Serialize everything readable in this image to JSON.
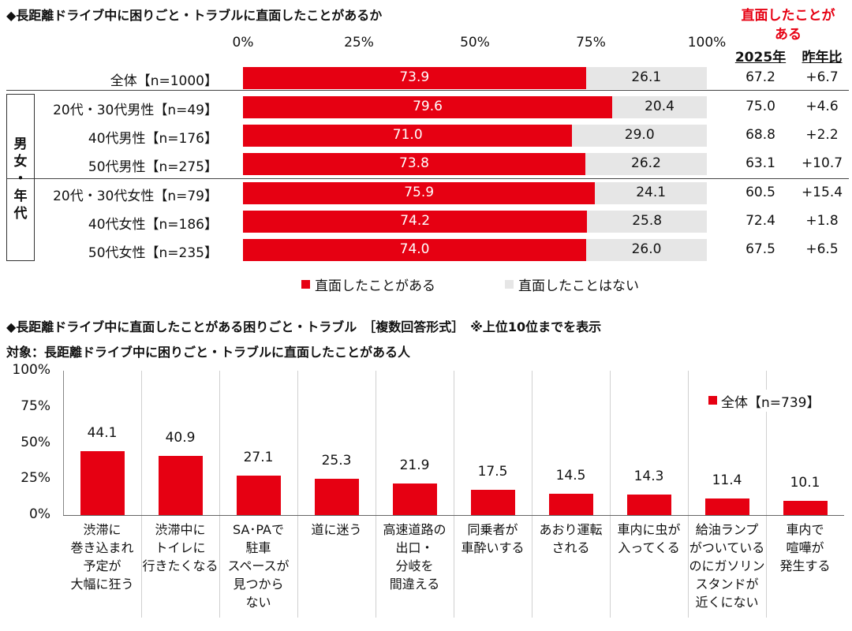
{
  "top": {
    "title": "◆長距離ドライブ中に困りごと・トラブルに直面したことがあるか",
    "axis_ticks": [
      "0%",
      "25%",
      "50%",
      "75%",
      "100%"
    ],
    "side_header": "直面したことが\nある",
    "col_2025": "2025年",
    "col_yoy": "昨年比",
    "group_label": "男\n女\n・\n年\n代",
    "legend": [
      {
        "label": "直面したことがある",
        "color": "#e60012"
      },
      {
        "label": "直面したことはない",
        "color": "#e6e6e6"
      }
    ],
    "rows": [
      {
        "label": "全体【n=1000】",
        "yes": "73.9",
        "no": "26.1",
        "y2025": "67.2",
        "diff": "+6.7"
      },
      {
        "label": "20代・30代男性【n=49】",
        "yes": "79.6",
        "no": "20.4",
        "y2025": "75.0",
        "diff": "+4.6"
      },
      {
        "label": "40代男性【n=176】",
        "yes": "71.0",
        "no": "29.0",
        "y2025": "68.8",
        "diff": "+2.2"
      },
      {
        "label": "50代男性【n=275】",
        "yes": "73.8",
        "no": "26.2",
        "y2025": "63.1",
        "diff": "+10.7"
      },
      {
        "label": "20代・30代女性【n=79】",
        "yes": "75.9",
        "no": "24.1",
        "y2025": "60.5",
        "diff": "+15.4"
      },
      {
        "label": "40代女性【n=186】",
        "yes": "74.2",
        "no": "25.8",
        "y2025": "72.4",
        "diff": "+1.8"
      },
      {
        "label": "50代女性【n=235】",
        "yes": "74.0",
        "no": "26.0",
        "y2025": "67.5",
        "diff": "+6.5"
      }
    ]
  },
  "bottom": {
    "title": "◆長距離ドライブ中に直面したことがある困りごと・トラブル　［複数回答形式］　※上位10位までを表示",
    "subtitle": "対象：長距離ドライブ中に困りごと・トラブルに直面したことがある人",
    "y_ticks": [
      "100%",
      "75%",
      "50%",
      "25%",
      "0%"
    ],
    "legend": "全体【n=739】",
    "bar_color": "#e60012",
    "items": [
      {
        "label": "渋滞に\n巻き込まれ\n予定が\n大幅に狂う",
        "value": "44.1"
      },
      {
        "label": "渋滞中に\nトイレに\n行きたくなる",
        "value": "40.9"
      },
      {
        "label": "SA･PAで\n駐車\nスペースが\n見つから\nない",
        "value": "27.1"
      },
      {
        "label": "道に迷う",
        "value": "25.3"
      },
      {
        "label": "高速道路の\n出口・\n分岐を\n間違える",
        "value": "21.9"
      },
      {
        "label": "同乗者が\n車酔いする",
        "value": "17.5"
      },
      {
        "label": "あおり運転\nされる",
        "value": "14.5"
      },
      {
        "label": "車内に虫が\n入ってくる",
        "value": "14.3"
      },
      {
        "label": "給油ランプ\nがついている\nのにガソリン\nスタンドが\n近くにない",
        "value": "11.4"
      },
      {
        "label": "車内で\n喧嘩が\n発生する",
        "value": "10.1"
      }
    ]
  },
  "chart_data": [
    {
      "type": "bar",
      "orientation": "horizontal-stacked",
      "title": "◆長距離ドライブ中に困りごと・トラブルに直面したことがあるか",
      "categories": [
        "全体【n=1000】",
        "20代・30代男性【n=49】",
        "40代男性【n=176】",
        "50代男性【n=275】",
        "20代・30代女性【n=79】",
        "40代女性【n=186】",
        "50代女性【n=235】"
      ],
      "series": [
        {
          "name": "直面したことがある",
          "values": [
            73.9,
            79.6,
            71.0,
            73.8,
            75.9,
            74.2,
            74.0
          ]
        },
        {
          "name": "直面したことはない",
          "values": [
            26.1,
            20.4,
            29.0,
            26.2,
            24.1,
            25.8,
            26.0
          ]
        }
      ],
      "xlim": [
        0,
        100
      ]
    },
    {
      "type": "bar",
      "title": "◆長距離ドライブ中に直面したことがある困りごと・トラブル　［複数回答形式］　※上位10位までを表示",
      "categories": [
        "渋滞に巻き込まれ予定が大幅に狂う",
        "渋滞中にトイレに行きたくなる",
        "SA･PAで駐車スペースが見つからない",
        "道に迷う",
        "高速道路の出口・分岐を間違える",
        "同乗者が車酔いする",
        "あおり運転される",
        "車内に虫が入ってくる",
        "給油ランプがついているのにガソリンスタンドが近くにない",
        "車内で喧嘩が発生する"
      ],
      "series": [
        {
          "name": "全体【n=739】",
          "values": [
            44.1,
            40.9,
            27.1,
            25.3,
            21.9,
            17.5,
            14.5,
            14.3,
            11.4,
            10.1
          ]
        }
      ],
      "ylim": [
        0,
        100
      ]
    }
  ]
}
